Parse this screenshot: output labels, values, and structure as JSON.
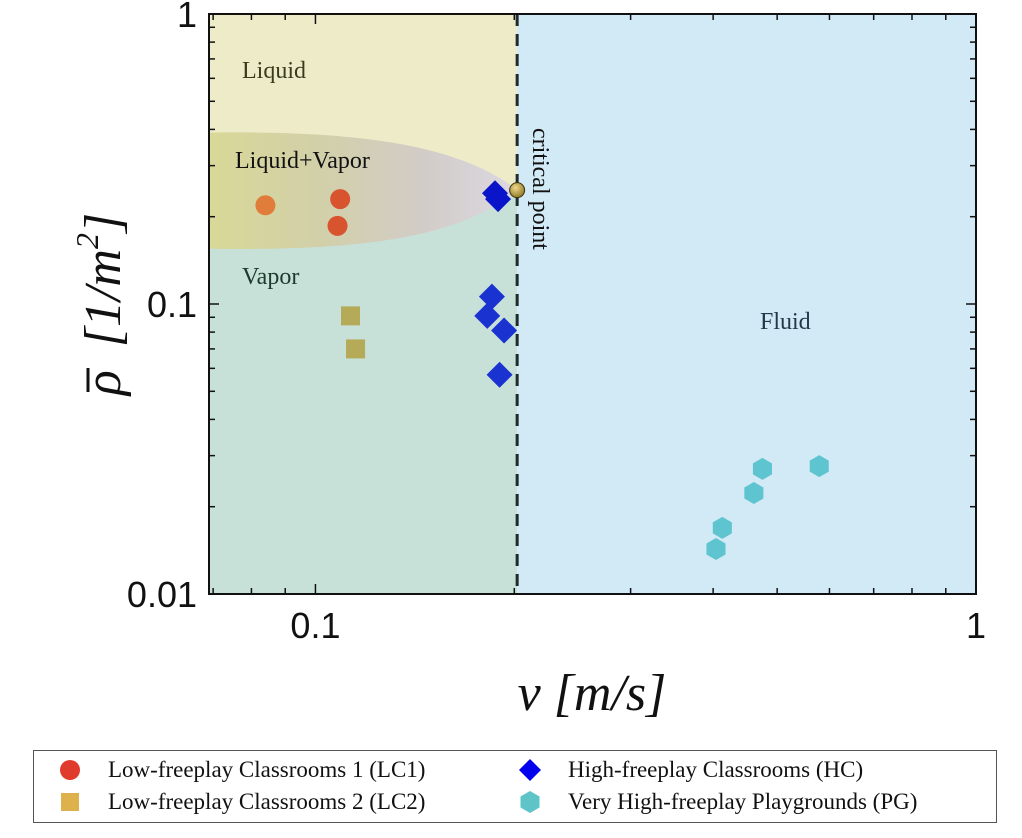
{
  "chart_data": {
    "type": "scatter",
    "title": "",
    "xlabel": "v [m/s]",
    "ylabel": "ρ̄ [1/m²]",
    "xscale": "log",
    "yscale": "log",
    "xlim": [
      0.069,
      1
    ],
    "ylim": [
      0.01,
      1
    ],
    "x_ticks": [
      {
        "value": 0.1,
        "label": "0.1"
      },
      {
        "value": 1,
        "label": "1"
      }
    ],
    "y_ticks": [
      {
        "value": 0.01,
        "label": "0.01"
      },
      {
        "value": 0.1,
        "label": "0.1"
      },
      {
        "value": 1,
        "label": "1"
      }
    ],
    "grid": false,
    "legend_position": "bottom",
    "regions": [
      {
        "name": "Liquid",
        "color": "#eeecc8"
      },
      {
        "name": "Liquid+Vapor",
        "color_from": "#d9d898",
        "color_to": "#dcd8e2"
      },
      {
        "name": "Vapor",
        "color": "#c7e1d8"
      },
      {
        "name": "Fluid",
        "color": "#d2e9f6"
      }
    ],
    "annotations": {
      "critical_point": {
        "label": "critical point",
        "v": 0.202,
        "rho": 0.247,
        "color": "#b99a30"
      },
      "critical_velocity_line": {
        "v": 0.202,
        "style": "dashed"
      },
      "coexistence_band_rho_range": [
        0.155,
        0.39
      ]
    },
    "series": [
      {
        "name": "Low-freeplay Classrooms 1 (LC1)",
        "marker": "circle",
        "color": "#e03a2c",
        "points": [
          {
            "v": 0.084,
            "rho": 0.219,
            "color": "#e07d3a"
          },
          {
            "v": 0.109,
            "rho": 0.23,
            "color": "#d8542e"
          },
          {
            "v": 0.108,
            "rho": 0.186,
            "color": "#d8542e"
          }
        ]
      },
      {
        "name": "Low-freeplay Classrooms 2 (LC2)",
        "marker": "square",
        "color": "#ddb24c",
        "points": [
          {
            "v": 0.113,
            "rho": 0.091,
            "color": "#b5aa58"
          },
          {
            "v": 0.115,
            "rho": 0.07,
            "color": "#b5aa58"
          }
        ]
      },
      {
        "name": "High-freeplay Classrooms (HC)",
        "marker": "diamond",
        "color": "#0000ee",
        "points": [
          {
            "v": 0.187,
            "rho": 0.241,
            "color": "#0a14c8"
          },
          {
            "v": 0.189,
            "rho": 0.23,
            "color": "#0a14c8"
          },
          {
            "v": 0.185,
            "rho": 0.106,
            "color": "#1a33d0"
          },
          {
            "v": 0.182,
            "rho": 0.091,
            "color": "#1a33d0"
          },
          {
            "v": 0.193,
            "rho": 0.081,
            "color": "#1a33d0"
          },
          {
            "v": 0.19,
            "rho": 0.057,
            "color": "#1a33d0"
          }
        ]
      },
      {
        "name": "Very High-freeplay Playgrounds (PG)",
        "marker": "hexagon",
        "color": "#5ec4c8",
        "points": [
          {
            "v": 0.475,
            "rho": 0.027,
            "color": "#5ec4d0"
          },
          {
            "v": 0.579,
            "rho": 0.0276,
            "color": "#5ec4d0"
          },
          {
            "v": 0.461,
            "rho": 0.0223,
            "color": "#5ec4d0"
          },
          {
            "v": 0.413,
            "rho": 0.0169,
            "color": "#5ec4d0"
          },
          {
            "v": 0.404,
            "rho": 0.0143,
            "color": "#5ec4d0"
          }
        ]
      }
    ]
  },
  "labels": {
    "liquid": "Liquid",
    "liquid_vapor": "Liquid+Vapor",
    "vapor": "Vapor",
    "fluid": "Fluid",
    "critical_point": "critical point",
    "xlabel": "v [m/s]",
    "ylabel_symbol": "ρ",
    "ylabel_units": "[1/m",
    "ylabel_power": "2",
    "ylabel_close": "]"
  },
  "legend": {
    "items": [
      {
        "label": "Low-freeplay Classrooms 1 (LC1)",
        "marker": "circle",
        "color": "#e03a2c"
      },
      {
        "label": "Low-freeplay Classrooms 2 (LC2)",
        "marker": "square",
        "color": "#ddb24c"
      },
      {
        "label": "High-freeplay Classrooms (HC)",
        "marker": "diamond",
        "color": "#0000ee"
      },
      {
        "label": "Very High-freeplay Playgrounds (PG)",
        "marker": "hexagon",
        "color": "#5ec4c8"
      }
    ]
  }
}
